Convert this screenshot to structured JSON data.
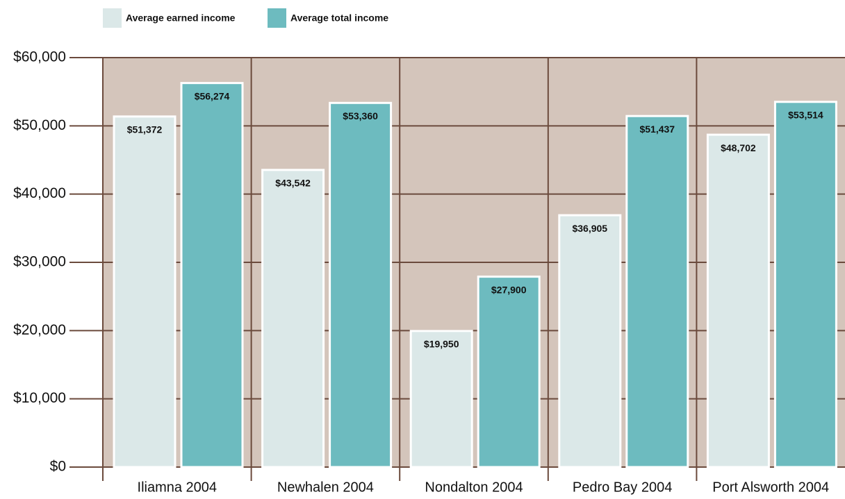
{
  "chart_data": {
    "type": "bar",
    "categories": [
      "Iliamna 2004",
      "Newhalen 2004",
      "Nondalton 2004",
      "Pedro Bay 2004",
      "Port Alsworth 2004"
    ],
    "series": [
      {
        "name": "Average earned income",
        "color": "#dbe8e8",
        "values": [
          51372,
          43542,
          19950,
          36905,
          48702
        ],
        "value_labels": [
          "$51,372",
          "$43,542",
          "$19,950",
          "$36,905",
          "$48,702"
        ]
      },
      {
        "name": "Average total income",
        "color": "#6dbbbf",
        "values": [
          56274,
          53360,
          27900,
          51437,
          53514
        ],
        "value_labels": [
          "$56,274",
          "$53,360",
          "$27,900",
          "$51,437",
          "$53,514"
        ]
      }
    ],
    "ylim": [
      0,
      60000
    ],
    "yticks": [
      {
        "value": 0,
        "label": "$0"
      },
      {
        "value": 10000,
        "label": "$10,000"
      },
      {
        "value": 20000,
        "label": "$20,000"
      },
      {
        "value": 30000,
        "label": "$30,000"
      },
      {
        "value": 40000,
        "label": "$40,000"
      },
      {
        "value": 50000,
        "label": "$50,000"
      },
      {
        "value": 60000,
        "label": "$60,000"
      }
    ],
    "grid": true
  }
}
